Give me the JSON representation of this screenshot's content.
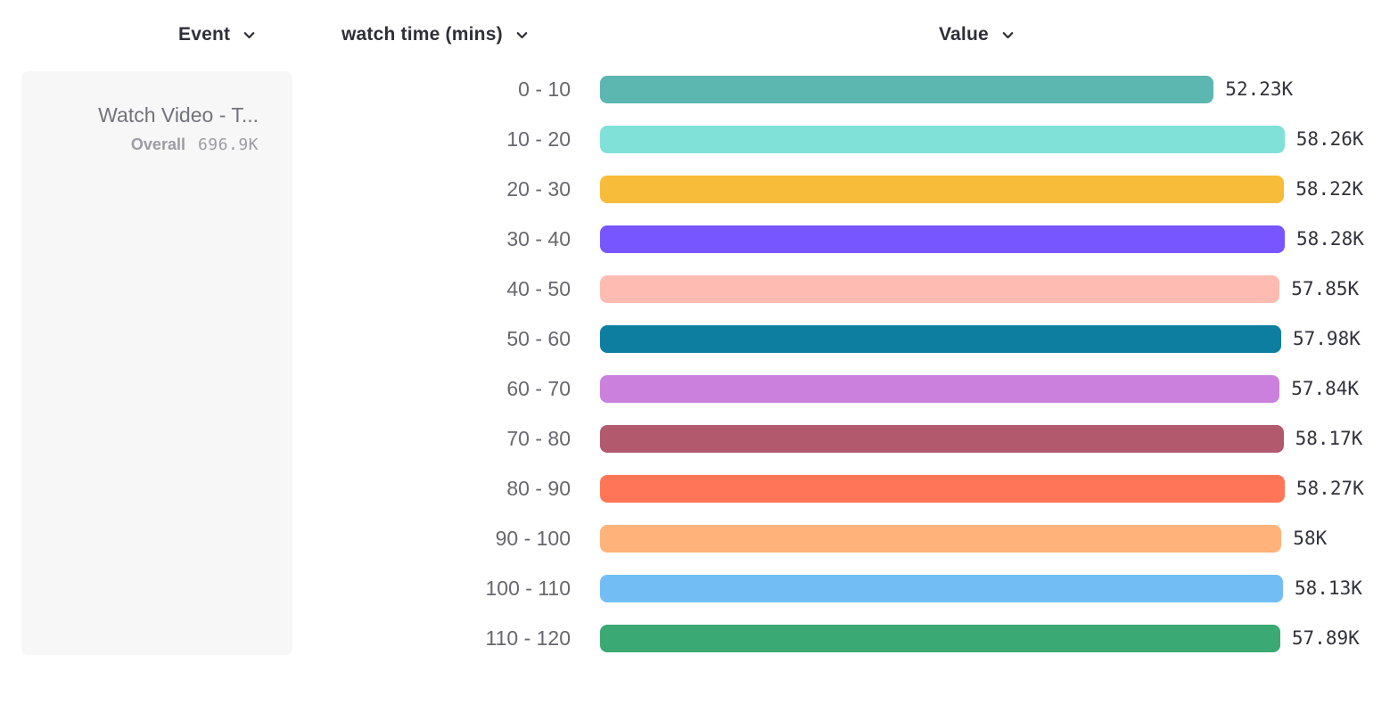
{
  "header": {
    "columns": [
      {
        "id": "event",
        "label": "Event"
      },
      {
        "id": "bucket",
        "label": "watch time (mins)"
      },
      {
        "id": "value",
        "label": "Value"
      }
    ]
  },
  "event_card": {
    "title": "Watch Video - T...",
    "overall_label": "Overall",
    "overall_value": "696.9K"
  },
  "chart_data": {
    "type": "bar",
    "orientation": "horizontal",
    "title": "",
    "xlabel": "Value",
    "ylabel": "watch time (mins)",
    "grid": false,
    "legend_position": "none",
    "categories": [
      "0 - 10",
      "10 - 20",
      "20 - 30",
      "30 - 40",
      "40 - 50",
      "50 - 60",
      "60 - 70",
      "70 - 80",
      "80 - 90",
      "90 - 100",
      "100 - 110",
      "110 - 120"
    ],
    "values": [
      52230,
      58260,
      58220,
      58280,
      57850,
      57980,
      57840,
      58170,
      58270,
      58000,
      58130,
      57890
    ],
    "value_labels": [
      "52.23K",
      "58.26K",
      "58.22K",
      "58.28K",
      "57.85K",
      "57.98K",
      "57.84K",
      "58.17K",
      "58.27K",
      "58K",
      "58.13K",
      "57.89K"
    ],
    "bar_colors": [
      "#5bb7af",
      "#80e1d9",
      "#f8bc3b",
      "#7856ff",
      "#febbb2",
      "#0d7ea0",
      "#ca80dc",
      "#b2596e",
      "#ff7557",
      "#ffb27a",
      "#72bef4",
      "#3ba974"
    ],
    "xlim": [
      0,
      58280
    ]
  },
  "icons": {
    "header_dropdown": "chevron-down"
  }
}
